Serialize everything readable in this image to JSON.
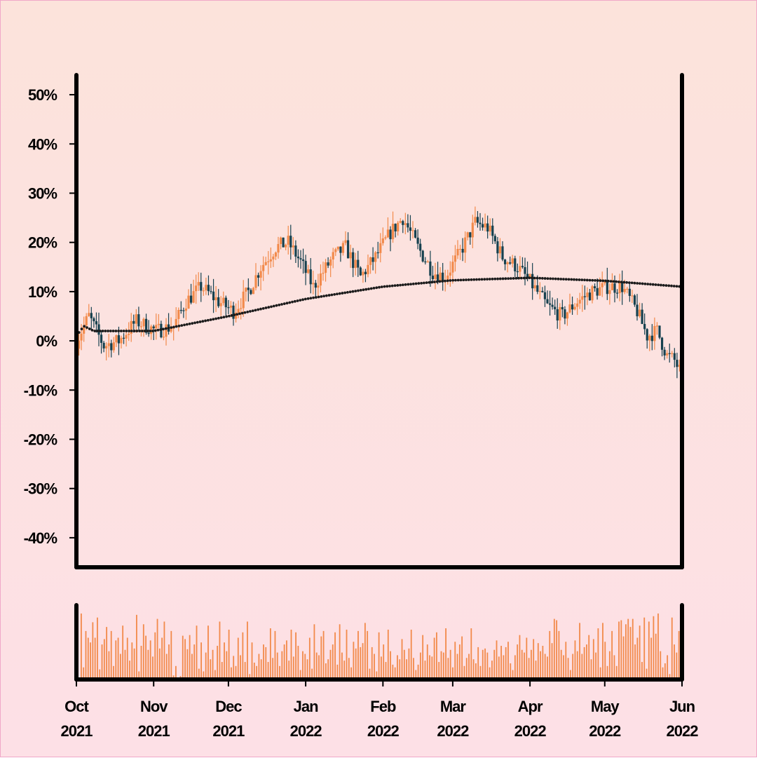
{
  "chart_data": [
    {
      "type": "candlestick",
      "title": "",
      "xlabel": "",
      "ylabel": "",
      "ylim": [
        -46,
        54
      ],
      "yticks": [
        "50%",
        "40%",
        "30%",
        "20%",
        "10%",
        "0%",
        "-10%",
        "-20%",
        "-30%",
        "-40%"
      ],
      "ytick_values": [
        50,
        40,
        30,
        20,
        10,
        0,
        -10,
        -20,
        -30,
        -40
      ],
      "xlim": [
        "2021-10-01",
        "2022-06-01"
      ],
      "x_ticks": [
        {
          "date": "2021-10-01",
          "month": "Oct",
          "year": "2021"
        },
        {
          "date": "2021-11-01",
          "month": "Nov",
          "year": "2021"
        },
        {
          "date": "2021-12-01",
          "month": "Dec",
          "year": "2021"
        },
        {
          "date": "2022-01-01",
          "month": "Jan",
          "year": "2022"
        },
        {
          "date": "2022-02-01",
          "month": "Feb",
          "year": "2022"
        },
        {
          "date": "2022-03-01",
          "month": "Mar",
          "year": "2022"
        },
        {
          "date": "2022-04-01",
          "month": "Apr",
          "year": "2022"
        },
        {
          "date": "2022-05-01",
          "month": "May",
          "year": "2022"
        },
        {
          "date": "2022-06-01",
          "month": "Jun",
          "year": "2022"
        }
      ],
      "grid": false,
      "up_color": "#f28a4b",
      "down_color": "#16414f",
      "price_path": [
        {
          "date": "2021-10-01",
          "value": 0
        },
        {
          "date": "2021-10-06",
          "value": 5
        },
        {
          "date": "2021-10-12",
          "value": -1
        },
        {
          "date": "2021-10-18",
          "value": 0
        },
        {
          "date": "2021-10-25",
          "value": 4
        },
        {
          "date": "2021-11-02",
          "value": 2
        },
        {
          "date": "2021-11-09",
          "value": 3
        },
        {
          "date": "2021-11-14",
          "value": 8
        },
        {
          "date": "2021-11-20",
          "value": 11
        },
        {
          "date": "2021-11-27",
          "value": 8
        },
        {
          "date": "2021-12-03",
          "value": 6
        },
        {
          "date": "2021-12-09",
          "value": 10
        },
        {
          "date": "2021-12-14",
          "value": 15
        },
        {
          "date": "2021-12-20",
          "value": 19
        },
        {
          "date": "2021-12-25",
          "value": 20
        },
        {
          "date": "2021-12-30",
          "value": 16
        },
        {
          "date": "2022-01-04",
          "value": 11
        },
        {
          "date": "2022-01-12",
          "value": 17
        },
        {
          "date": "2022-01-17",
          "value": 19
        },
        {
          "date": "2022-01-23",
          "value": 13
        },
        {
          "date": "2022-01-29",
          "value": 17
        },
        {
          "date": "2022-02-04",
          "value": 22
        },
        {
          "date": "2022-02-09",
          "value": 25
        },
        {
          "date": "2022-02-15",
          "value": 19
        },
        {
          "date": "2022-02-21",
          "value": 14
        },
        {
          "date": "2022-02-26",
          "value": 13
        },
        {
          "date": "2022-03-04",
          "value": 18
        },
        {
          "date": "2022-03-10",
          "value": 24
        },
        {
          "date": "2022-03-15",
          "value": 23
        },
        {
          "date": "2022-03-21",
          "value": 17
        },
        {
          "date": "2022-03-27",
          "value": 15
        },
        {
          "date": "2022-04-01",
          "value": 12
        },
        {
          "date": "2022-04-08",
          "value": 7
        },
        {
          "date": "2022-04-14",
          "value": 5
        },
        {
          "date": "2022-04-20",
          "value": 8
        },
        {
          "date": "2022-04-26",
          "value": 10
        },
        {
          "date": "2022-05-02",
          "value": 11
        },
        {
          "date": "2022-05-08",
          "value": 11
        },
        {
          "date": "2022-05-14",
          "value": 6
        },
        {
          "date": "2022-05-18",
          "value": 1
        },
        {
          "date": "2022-05-22",
          "value": 2
        },
        {
          "date": "2022-05-26",
          "value": -3
        },
        {
          "date": "2022-05-29",
          "value": -4
        },
        {
          "date": "2022-06-01",
          "value": -7
        }
      ],
      "trend_line": [
        {
          "date": "2021-10-01",
          "value": 1
        },
        {
          "date": "2021-10-04",
          "value": 3
        },
        {
          "date": "2021-10-08",
          "value": 2
        },
        {
          "date": "2021-11-01",
          "value": 2
        },
        {
          "date": "2021-12-01",
          "value": 5
        },
        {
          "date": "2022-01-01",
          "value": 8.5
        },
        {
          "date": "2022-02-01",
          "value": 11
        },
        {
          "date": "2022-03-01",
          "value": 12.3
        },
        {
          "date": "2022-04-01",
          "value": 12.8
        },
        {
          "date": "2022-05-01",
          "value": 12.2
        },
        {
          "date": "2022-06-01",
          "value": 11
        }
      ]
    },
    {
      "type": "bar",
      "title": "",
      "xlabel": "",
      "ylabel": "",
      "color": "#f28a4b",
      "ylim": [
        0,
        1
      ],
      "note_values_relative": "volume bars, heights relative to panel (0-1)",
      "values": [
        0.98,
        0.18,
        0.72,
        0.62,
        0.55,
        0.85,
        0.62,
        0.92,
        0.15,
        0.52,
        0.6,
        0.78,
        0.42,
        0.72,
        0.2,
        0.58,
        0.62,
        0.38,
        0.8,
        0.44,
        0.62,
        0.28,
        0.55,
        0.46,
        0.96,
        0.12,
        0.5,
        0.82,
        0.65,
        0.44,
        0.58,
        0.34,
        0.7,
        0.9,
        0.46,
        0.62,
        0.86,
        0.38,
        0.52,
        0.72,
        0.06,
        0.2,
        0.02,
        0.05,
        0.65,
        0.6,
        0.45,
        0.66,
        0.38,
        0.52,
        0.8,
        0.16,
        0.55,
        0.12,
        0.4,
        0.8,
        0.3,
        0.44,
        0.14,
        0.5,
        0.86,
        0.26,
        0.55,
        0.42,
        0.74,
        0.18,
        0.35,
        0.2,
        0.62,
        0.36,
        0.7,
        0.26,
        0.86,
        0.08,
        0.55,
        0.25,
        0.2,
        0.38,
        0.3,
        0.52,
        0.48,
        0.26,
        0.76,
        0.32,
        0.72,
        0.4,
        0.2,
        0.42,
        0.52,
        0.58,
        0.28,
        0.74,
        0.34,
        0.7,
        0.5,
        0.14,
        0.42,
        0.38,
        0.3,
        0.62,
        0.16,
        0.82,
        0.4,
        0.36,
        0.64,
        0.72,
        0.24,
        0.3,
        0.44,
        0.52,
        0.7,
        0.22,
        0.82,
        0.4,
        0.28,
        0.74,
        0.32,
        0.18,
        0.56,
        0.46,
        0.72,
        0.48,
        0.54,
        0.84,
        0.72,
        0.16,
        0.48,
        0.38,
        0.12,
        0.7,
        0.34,
        0.52,
        0.26,
        0.74,
        0.42,
        0.22,
        0.18,
        0.36,
        0.3,
        0.6,
        0.44,
        0.3,
        0.46,
        0.74,
        0.32,
        0.14,
        0.22,
        0.4,
        0.66,
        0.28,
        0.52,
        0.36,
        0.34,
        0.62,
        0.7,
        0.26,
        0.42,
        0.4,
        0.76,
        0.32,
        0.44,
        0.18,
        0.56,
        0.38,
        0.52,
        0.64,
        0.2,
        0.32,
        0.38,
        0.76,
        0.3,
        0.24,
        0.48,
        0.2,
        0.44,
        0.46,
        0.4,
        0.18,
        0.28,
        0.44,
        0.58,
        0.34,
        0.5,
        0.36,
        0.48,
        0.56,
        0.24,
        0.14,
        0.36,
        0.52,
        0.66,
        0.44,
        0.4,
        0.62,
        0.32,
        0.44,
        0.6,
        0.28,
        0.54,
        0.42,
        0.5,
        0.38,
        0.34,
        0.72,
        0.54,
        0.9,
        0.88,
        0.72,
        0.44,
        0.36,
        0.56,
        0.32,
        0.14,
        0.38,
        0.58,
        0.42,
        0.84,
        0.38,
        0.48,
        0.52,
        0.66,
        0.3,
        0.6,
        0.4,
        0.76,
        0.18,
        0.84,
        0.56,
        0.2,
        0.42,
        0.72,
        0.36,
        0.2,
        0.86,
        0.88,
        0.64,
        0.82,
        0.9,
        0.78,
        0.9,
        0.52,
        0.62,
        0.8,
        0.26,
        0.92,
        0.16,
        0.86,
        0.62,
        0.94,
        0.68,
        0.98,
        0.42,
        0.18,
        0.24,
        0.36,
        0.08,
        0.92,
        0.52,
        0.4,
        0.72
      ]
    }
  ]
}
